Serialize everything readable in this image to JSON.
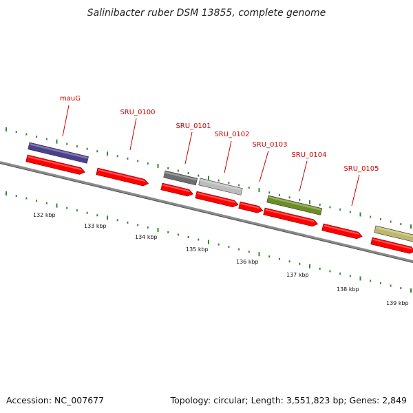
{
  "title": "Salinibacter ruber DSM 13855, complete genome",
  "footer": {
    "accession": "Accession: NC_007677",
    "summary": "Topology: circular; Length: 3,551,823 bp; Genes: 2,849"
  },
  "colors": {
    "backbone": "#8c8c8c",
    "dots": "#2e8b2e",
    "gene_label": "#cc0000",
    "leader_line": "#cc0000",
    "cds_arrow": "#ff0000"
  },
  "scale_labels": [
    "132 kbp",
    "133 kbp",
    "134 kbp",
    "135 kbp",
    "136 kbp",
    "137 kbp",
    "138 kbp",
    "139 kbp"
  ],
  "gene_labels": [
    {
      "label": "mauG"
    },
    {
      "label": "SRU_0100"
    },
    {
      "label": "SRU_0101"
    },
    {
      "label": "SRU_0102"
    },
    {
      "label": "SRU_0103"
    },
    {
      "label": "SRU_0104"
    },
    {
      "label": "SRU_0105"
    }
  ],
  "feature_colors": [
    "#4b3f8f",
    "#6e6e6e",
    "#bcbcbc",
    "#6b8e23",
    "#bdb76b"
  ]
}
